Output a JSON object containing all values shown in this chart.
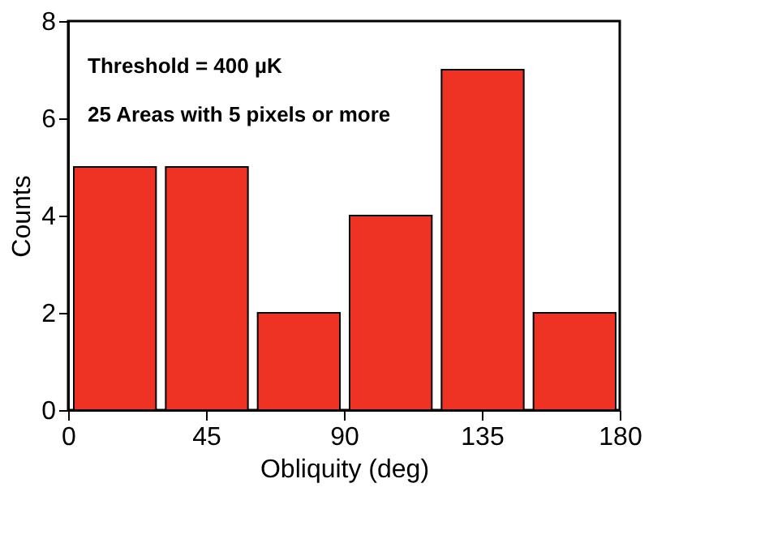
{
  "chart_data": {
    "type": "histogram",
    "xlabel": "Obliquity (deg)",
    "ylabel": "Counts",
    "bins": [
      0,
      30,
      60,
      90,
      120,
      150,
      180
    ],
    "values": [
      5,
      5,
      2,
      4,
      7,
      2
    ],
    "color": "#ee3224",
    "xlim": [
      0,
      180
    ],
    "xticks": [
      0,
      45,
      90,
      135,
      180
    ],
    "ylim": [
      0,
      8
    ],
    "yticks": [
      0,
      2,
      4,
      6,
      8
    ],
    "grid": false,
    "annotations": [
      "Threshold = 400 µK",
      "25 Areas with 5 pixels or more"
    ]
  }
}
